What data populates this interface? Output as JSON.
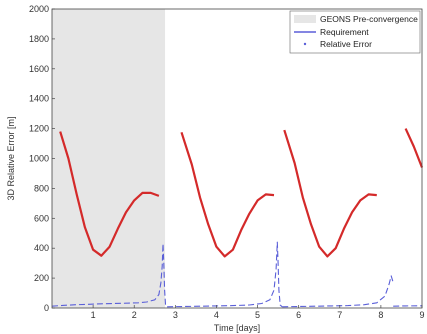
{
  "chart_data": {
    "type": "line",
    "xlabel": "Time [days]",
    "ylabel": "3D Relative Error [m]",
    "xlim": [
      0,
      9
    ],
    "ylim": [
      0,
      2000
    ],
    "xticks": [
      1,
      2,
      3,
      4,
      5,
      6,
      7,
      8,
      9
    ],
    "yticks": [
      0,
      200,
      400,
      600,
      800,
      1000,
      1200,
      1400,
      1600,
      1800,
      2000
    ],
    "grid": false,
    "legend_position": "top-right",
    "shaded_region": {
      "name": "GEONS Pre-convergence",
      "x_start": 0,
      "x_end": 2.75,
      "color": "#e6e6e6"
    },
    "series": [
      {
        "name": "Requirement",
        "color": "#d42a2a",
        "segments": [
          {
            "x": [
              0.2,
              0.4,
              0.6,
              0.8,
              1.0,
              1.2,
              1.4,
              1.6,
              1.8,
              2.0,
              2.2,
              2.4,
              2.6
            ],
            "y": [
              1180,
              1000,
              760,
              540,
              390,
              350,
              410,
              530,
              640,
              720,
              770,
              770,
              750
            ]
          },
          {
            "x": [
              3.15,
              3.4,
              3.6,
              3.8,
              4.0,
              4.2,
              4.4,
              4.6,
              4.8,
              5.0,
              5.2,
              5.4
            ],
            "y": [
              1175,
              960,
              740,
              560,
              410,
              345,
              390,
              520,
              630,
              720,
              760,
              755
            ]
          },
          {
            "x": [
              5.65,
              5.9,
              6.1,
              6.3,
              6.5,
              6.7,
              6.9,
              7.1,
              7.3,
              7.5,
              7.7,
              7.9
            ],
            "y": [
              1190,
              970,
              740,
              560,
              410,
              345,
              400,
              530,
              640,
              720,
              760,
              755
            ]
          },
          {
            "x": [
              8.6,
              8.8,
              9.0
            ],
            "y": [
              1200,
              1080,
              940
            ]
          }
        ]
      },
      {
        "name": "Relative Error",
        "color": "#5a5fd8",
        "segments": [
          {
            "x": [
              0.0,
              0.3,
              0.6,
              0.9,
              1.2,
              1.5,
              1.8,
              2.1,
              2.3,
              2.5,
              2.6,
              2.65,
              2.68,
              2.7,
              2.72,
              2.74,
              2.76,
              2.8
            ],
            "y": [
              12,
              18,
              22,
              25,
              28,
              30,
              32,
              35,
              40,
              55,
              90,
              170,
              280,
              430,
              300,
              120,
              25,
              8
            ]
          },
          {
            "x": [
              2.8,
              3.2,
              3.6,
              4.0,
              4.4,
              4.8,
              5.1,
              5.3,
              5.4,
              5.45,
              5.48,
              5.5,
              5.52,
              5.55,
              5.6
            ],
            "y": [
              8,
              10,
              12,
              14,
              16,
              20,
              30,
              55,
              120,
              260,
              440,
              300,
              120,
              20,
              8
            ]
          },
          {
            "x": [
              5.6,
              6.0,
              6.4,
              6.8,
              7.2,
              7.6,
              7.9,
              8.1,
              8.2,
              8.25,
              8.3
            ],
            "y": [
              8,
              10,
              12,
              14,
              16,
              22,
              35,
              80,
              160,
              215,
              170
            ]
          },
          {
            "x": [
              8.3,
              8.6,
              9.0
            ],
            "y": [
              12,
              14,
              15
            ]
          }
        ]
      }
    ]
  }
}
